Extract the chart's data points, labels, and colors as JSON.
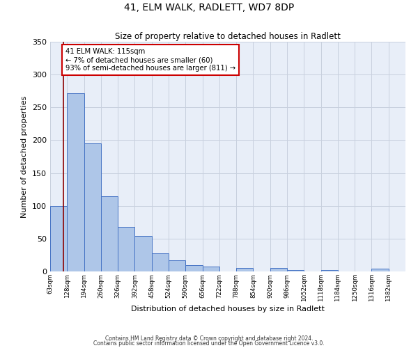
{
  "title": "41, ELM WALK, RADLETT, WD7 8DP",
  "subtitle": "Size of property relative to detached houses in Radlett",
  "xlabel": "Distribution of detached houses by size in Radlett",
  "ylabel": "Number of detached properties",
  "bin_labels": [
    "63sqm",
    "128sqm",
    "194sqm",
    "260sqm",
    "326sqm",
    "392sqm",
    "458sqm",
    "524sqm",
    "590sqm",
    "656sqm",
    "722sqm",
    "788sqm",
    "854sqm",
    "920sqm",
    "986sqm",
    "1052sqm",
    "1118sqm",
    "1184sqm",
    "1250sqm",
    "1316sqm",
    "1382sqm"
  ],
  "bar_values": [
    100,
    271,
    195,
    115,
    68,
    54,
    28,
    17,
    10,
    7,
    0,
    5,
    0,
    5,
    2,
    0,
    2,
    0,
    0,
    4,
    0
  ],
  "bar_color": "#aec6e8",
  "bar_edge_color": "#4472c4",
  "background_color": "#e8eef8",
  "grid_color": "#c8d0de",
  "property_line_color": "#8b0000",
  "annotation_text": "41 ELM WALK: 115sqm\n← 7% of detached houses are smaller (60)\n93% of semi-detached houses are larger (811) →",
  "annotation_box_color": "white",
  "annotation_box_edge_color": "#cc0000",
  "ylim": [
    0,
    350
  ],
  "yticks": [
    0,
    50,
    100,
    150,
    200,
    250,
    300,
    350
  ],
  "footnote1": "Contains HM Land Registry data © Crown copyright and database right 2024.",
  "footnote2": "Contains public sector information licensed under the Open Government Licence v3.0."
}
